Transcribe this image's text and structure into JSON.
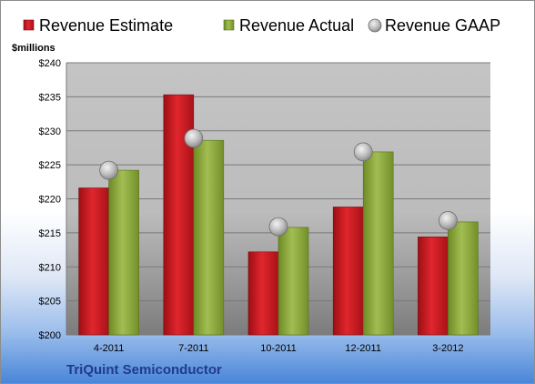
{
  "chart_data": {
    "type": "bar",
    "unit_label": "$millions",
    "categories": [
      "4-2011",
      "7-2011",
      "10-2011",
      "12-2011",
      "3-2012"
    ],
    "series": [
      {
        "name": "Revenue Estimate",
        "kind": "bar",
        "color": "#c8161d",
        "values": [
          221.6,
          235.3,
          212.2,
          218.8,
          214.4
        ]
      },
      {
        "name": "Revenue Actual",
        "kind": "bar",
        "color": "#8aa63a",
        "values": [
          224.2,
          228.6,
          215.8,
          226.9,
          216.6
        ]
      },
      {
        "name": "Revenue GAAP",
        "kind": "marker",
        "color": "#b8b8b8",
        "values": [
          224.2,
          228.9,
          215.9,
          226.9,
          216.8
        ]
      }
    ],
    "ylim": [
      200,
      240
    ],
    "ytick_step": 5,
    "ytick_prefix": "$",
    "grid": true,
    "legend_position": "top",
    "footer": "TriQuint Semiconductor"
  }
}
